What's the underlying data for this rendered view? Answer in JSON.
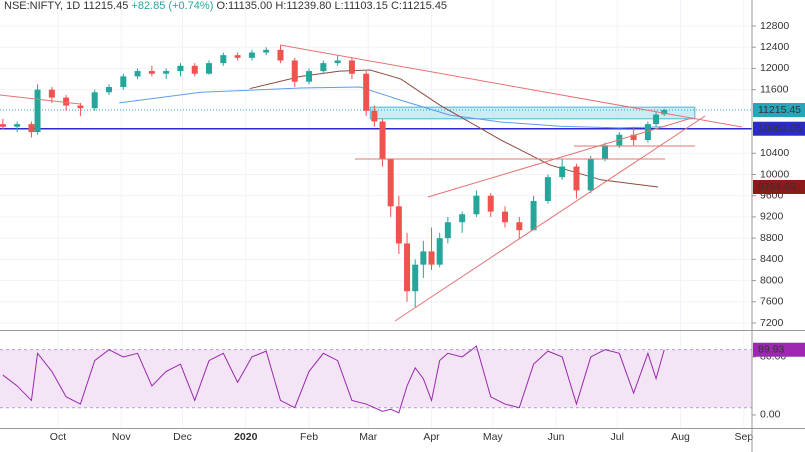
{
  "chart_data": {
    "type": "candlestick",
    "header": {
      "symbol": "NSE:NIFTY, 1D",
      "last": "11215.45",
      "change": "+82.85 (+0.74%)",
      "open": "O:11135.00",
      "high": "H:11239.80",
      "low": "L:11103.15",
      "close": "C:11215.45"
    },
    "x": [
      3,
      10,
      17,
      20,
      27,
      34,
      41,
      48,
      55,
      62,
      69,
      76,
      83,
      90,
      97,
      104,
      111,
      118,
      125,
      132,
      139,
      146,
      153,
      160,
      167,
      174,
      181,
      185,
      189,
      193,
      197,
      201,
      205,
      209,
      213,
      217,
      221,
      228,
      235,
      242,
      249,
      256,
      263,
      270,
      277,
      284,
      291,
      298,
      305,
      312,
      319,
      323,
      327
    ],
    "open": [
      10950,
      10900,
      10950,
      10800,
      11600,
      11450,
      11300,
      11250,
      11550,
      11650,
      11850,
      11950,
      11900,
      11950,
      12050,
      11900,
      12100,
      12250,
      12200,
      12300,
      12350,
      12150,
      11750,
      11950,
      12100,
      12150,
      11900,
      11200,
      11000,
      10300,
      9400,
      8700,
      7800,
      8300,
      8550,
      8300,
      8800,
      9100,
      9250,
      9600,
      9300,
      9100,
      8950,
      9500,
      9950,
      10150,
      9700,
      10300,
      10550,
      10750,
      10650,
      10950,
      11135
    ],
    "high": [
      11050,
      11000,
      11000,
      11700,
      11650,
      11500,
      11350,
      11600,
      11700,
      11900,
      12000,
      12050,
      12000,
      12100,
      12100,
      12150,
      12300,
      12300,
      12350,
      12400,
      12430,
      12200,
      12000,
      12150,
      12250,
      12200,
      11950,
      11300,
      11050,
      10300,
      9600,
      8900,
      8400,
      8750,
      9000,
      8900,
      9200,
      9300,
      9700,
      9650,
      9400,
      9200,
      9600,
      10000,
      10300,
      10200,
      10350,
      10600,
      10800,
      10900,
      11000,
      11200,
      11239.8
    ],
    "low": [
      10850,
      10800,
      10700,
      10750,
      11350,
      11200,
      11100,
      11200,
      11500,
      11600,
      11800,
      11850,
      11800,
      11850,
      11850,
      11880,
      12050,
      12150,
      12150,
      12250,
      12100,
      11650,
      11700,
      11900,
      12050,
      11800,
      11100,
      10900,
      10150,
      9200,
      8500,
      7600,
      7500,
      8050,
      8200,
      8250,
      8700,
      8900,
      9200,
      9200,
      9000,
      8800,
      8950,
      9450,
      9900,
      9550,
      9650,
      10250,
      10500,
      10550,
      10600,
      10900,
      11103.15
    ],
    "close": [
      10900,
      10950,
      10800,
      11600,
      11450,
      11300,
      11250,
      11550,
      11650,
      11850,
      11950,
      11900,
      11950,
      12050,
      11900,
      12100,
      12250,
      12200,
      12300,
      12350,
      12150,
      11750,
      11950,
      12100,
      12150,
      11900,
      11200,
      11000,
      10300,
      9400,
      8700,
      7800,
      8300,
      8550,
      8300,
      8800,
      9100,
      9250,
      9600,
      9300,
      9100,
      8950,
      9500,
      9950,
      10150,
      9700,
      10300,
      10550,
      10750,
      10650,
      10950,
      11130,
      11215.45
    ],
    "up_color": "#26a69a",
    "down_color": "#ef5350",
    "xlim": [
      1.6,
      370
    ],
    "xticks": [
      {
        "value": 30,
        "label": "Oct"
      },
      {
        "value": 61,
        "label": "Nov"
      },
      {
        "value": 91,
        "label": "Dec"
      },
      {
        "value": 122,
        "label": "2020"
      },
      {
        "value": 153,
        "label": "Feb"
      },
      {
        "value": 182,
        "label": "Mar"
      },
      {
        "value": 213,
        "label": "Apr"
      },
      {
        "value": 243,
        "label": "May"
      },
      {
        "value": 274,
        "label": "Jun"
      },
      {
        "value": 304,
        "label": "Jul"
      },
      {
        "value": 335,
        "label": "Aug"
      },
      {
        "value": 366,
        "label": "Sep"
      }
    ],
    "ylim": [
      7068,
      13290
    ],
    "yticks": [
      12800,
      12400,
      12000,
      11600,
      10400,
      10000,
      9600,
      9200,
      8800,
      8400,
      8000,
      7600,
      7200
    ],
    "grid": true,
    "lines": [
      {
        "color": "#5d9cec",
        "x": [
          60,
          100,
          149,
          178,
          198,
          222,
          247,
          276,
          305,
          327
        ],
        "values": [
          11350,
          11550,
          11630,
          11650,
          11400,
          11120,
          10990,
          10910,
          10880,
          10900
        ]
      },
      {
        "color": "#8d4b3e",
        "x": [
          124,
          149,
          168,
          183,
          198,
          217,
          247,
          271,
          296,
          324
        ],
        "values": [
          11620,
          11850,
          11950,
          11970,
          11800,
          11310,
          10650,
          10180,
          9900,
          9764.63
        ],
        "label_color": "#8b1a1a"
      }
    ],
    "price_lines": [
      {
        "value": 11215.45,
        "color": "#26a6b8",
        "dashed": true
      },
      {
        "value": 10863.05,
        "color": "#2b2bc8",
        "dashed": false
      }
    ],
    "zone": {
      "xlim": [
        183,
        342
      ],
      "ylim": [
        11050,
        11270
      ],
      "color": "#b3e5f0"
    },
    "rsi": {
      "ylim": [
        -18,
        113
      ],
      "yticks": [
        {
          "value": 0,
          "label": "0.00"
        },
        {
          "value": 80,
          "label": "80.00"
        }
      ],
      "band": [
        10,
        90
      ],
      "color": "#9c27b0",
      "values": [
        55,
        40,
        20,
        85,
        60,
        25,
        15,
        75,
        90,
        80,
        85,
        40,
        60,
        70,
        20,
        75,
        85,
        45,
        80,
        88,
        20,
        10,
        60,
        85,
        75,
        20,
        15,
        10,
        5,
        8,
        3,
        40,
        65,
        50,
        20,
        75,
        85,
        80,
        95,
        25,
        15,
        10,
        70,
        88,
        80,
        15,
        80,
        90,
        85,
        30,
        85,
        50,
        89.93
      ]
    }
  }
}
